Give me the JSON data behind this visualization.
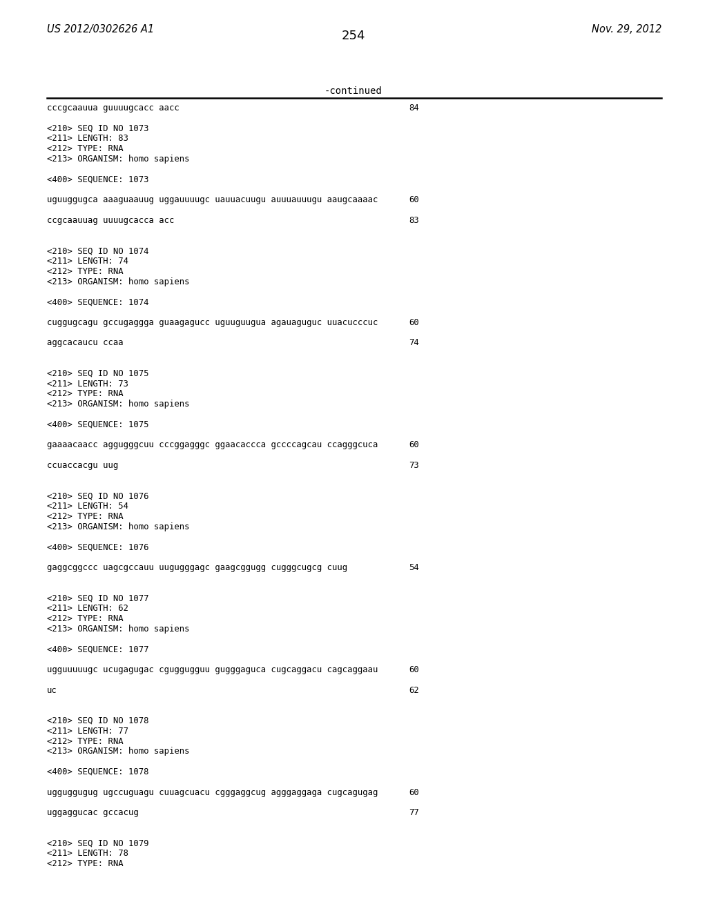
{
  "page_number": "254",
  "top_left": "US 2012/0302626 A1",
  "top_right": "Nov. 29, 2012",
  "continued_label": "-continued",
  "bg_color": "#ffffff",
  "text_color": "#000000",
  "lines": [
    {
      "text": "cccgcaauua guuuugcacc aacc",
      "num": "84"
    },
    {
      "text": "",
      "num": ""
    },
    {
      "text": "<210> SEQ ID NO 1073",
      "num": ""
    },
    {
      "text": "<211> LENGTH: 83",
      "num": ""
    },
    {
      "text": "<212> TYPE: RNA",
      "num": ""
    },
    {
      "text": "<213> ORGANISM: homo sapiens",
      "num": ""
    },
    {
      "text": "",
      "num": ""
    },
    {
      "text": "<400> SEQUENCE: 1073",
      "num": ""
    },
    {
      "text": "",
      "num": ""
    },
    {
      "text": "uguuggugca aaaguaauug uggauuuugc uauuacuugu auuuauuugu aaugcaaaac",
      "num": "60"
    },
    {
      "text": "",
      "num": ""
    },
    {
      "text": "ccgcaauuag uuuugcacca acc",
      "num": "83"
    },
    {
      "text": "",
      "num": ""
    },
    {
      "text": "",
      "num": ""
    },
    {
      "text": "<210> SEQ ID NO 1074",
      "num": ""
    },
    {
      "text": "<211> LENGTH: 74",
      "num": ""
    },
    {
      "text": "<212> TYPE: RNA",
      "num": ""
    },
    {
      "text": "<213> ORGANISM: homo sapiens",
      "num": ""
    },
    {
      "text": "",
      "num": ""
    },
    {
      "text": "<400> SEQUENCE: 1074",
      "num": ""
    },
    {
      "text": "",
      "num": ""
    },
    {
      "text": "cuggugcagu gccugaggga guaagagucc uguuguugua agauaguguc uuacucccuc",
      "num": "60"
    },
    {
      "text": "",
      "num": ""
    },
    {
      "text": "aggcacaucu ccaa",
      "num": "74"
    },
    {
      "text": "",
      "num": ""
    },
    {
      "text": "",
      "num": ""
    },
    {
      "text": "<210> SEQ ID NO 1075",
      "num": ""
    },
    {
      "text": "<211> LENGTH: 73",
      "num": ""
    },
    {
      "text": "<212> TYPE: RNA",
      "num": ""
    },
    {
      "text": "<213> ORGANISM: homo sapiens",
      "num": ""
    },
    {
      "text": "",
      "num": ""
    },
    {
      "text": "<400> SEQUENCE: 1075",
      "num": ""
    },
    {
      "text": "",
      "num": ""
    },
    {
      "text": "gaaaacaacc aggugggcuu cccggagggc ggaacaccca gccccagcau ccagggcuca",
      "num": "60"
    },
    {
      "text": "",
      "num": ""
    },
    {
      "text": "ccuaccacgu uug",
      "num": "73"
    },
    {
      "text": "",
      "num": ""
    },
    {
      "text": "",
      "num": ""
    },
    {
      "text": "<210> SEQ ID NO 1076",
      "num": ""
    },
    {
      "text": "<211> LENGTH: 54",
      "num": ""
    },
    {
      "text": "<212> TYPE: RNA",
      "num": ""
    },
    {
      "text": "<213> ORGANISM: homo sapiens",
      "num": ""
    },
    {
      "text": "",
      "num": ""
    },
    {
      "text": "<400> SEQUENCE: 1076",
      "num": ""
    },
    {
      "text": "",
      "num": ""
    },
    {
      "text": "gaggcggccc uagcgccauu uugugggagc gaagcggugg cugggcugcg cuug",
      "num": "54"
    },
    {
      "text": "",
      "num": ""
    },
    {
      "text": "",
      "num": ""
    },
    {
      "text": "<210> SEQ ID NO 1077",
      "num": ""
    },
    {
      "text": "<211> LENGTH: 62",
      "num": ""
    },
    {
      "text": "<212> TYPE: RNA",
      "num": ""
    },
    {
      "text": "<213> ORGANISM: homo sapiens",
      "num": ""
    },
    {
      "text": "",
      "num": ""
    },
    {
      "text": "<400> SEQUENCE: 1077",
      "num": ""
    },
    {
      "text": "",
      "num": ""
    },
    {
      "text": "ugguuuuugc ucugagugac cguggugguu gugggaguca cugcaggacu cagcaggaau",
      "num": "60"
    },
    {
      "text": "",
      "num": ""
    },
    {
      "text": "uc",
      "num": "62"
    },
    {
      "text": "",
      "num": ""
    },
    {
      "text": "",
      "num": ""
    },
    {
      "text": "<210> SEQ ID NO 1078",
      "num": ""
    },
    {
      "text": "<211> LENGTH: 77",
      "num": ""
    },
    {
      "text": "<212> TYPE: RNA",
      "num": ""
    },
    {
      "text": "<213> ORGANISM: homo sapiens",
      "num": ""
    },
    {
      "text": "",
      "num": ""
    },
    {
      "text": "<400> SEQUENCE: 1078",
      "num": ""
    },
    {
      "text": "",
      "num": ""
    },
    {
      "text": "ugguggugug ugccuguagu cuuagcuacu cgggaggcug agggaggaga cugcagugag",
      "num": "60"
    },
    {
      "text": "",
      "num": ""
    },
    {
      "text": "uggaggucac gccacug",
      "num": "77"
    },
    {
      "text": "",
      "num": ""
    },
    {
      "text": "",
      "num": ""
    },
    {
      "text": "<210> SEQ ID NO 1079",
      "num": ""
    },
    {
      "text": "<211> LENGTH: 78",
      "num": ""
    },
    {
      "text": "<212> TYPE: RNA",
      "num": ""
    }
  ]
}
